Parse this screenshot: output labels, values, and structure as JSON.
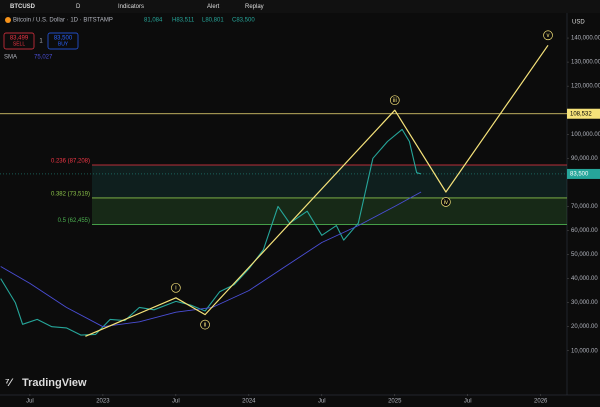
{
  "chart_data": {
    "type": "line",
    "symbol": "BTCUSD",
    "interval": "D",
    "toolbar": [
      "Indicators",
      "Alert",
      "Replay"
    ],
    "title": "Bitcoin / U.S. Dollar · 1D · BITSTAMP",
    "ohlc_text": [
      "81,084",
      "H83,511",
      "L80,801",
      "C83,500"
    ],
    "sell": {
      "price": "83,499",
      "label": "SELL"
    },
    "spread": "1",
    "buy": {
      "price": "83,500",
      "label": "BUY"
    },
    "indicator": {
      "name": "SMA",
      "value": "75,027"
    },
    "currency": "USD",
    "brand": "TradingView",
    "series": [
      {
        "name": "BTCUSD",
        "color": "#26a69a",
        "x": [
          2022.3,
          2022.4,
          2022.45,
          2022.55,
          2022.65,
          2022.75,
          2022.85,
          2022.95,
          2023.05,
          2023.15,
          2023.25,
          2023.35,
          2023.5,
          2023.6,
          2023.7,
          2023.8,
          2023.9,
          2024.0,
          2024.1,
          2024.2,
          2024.28,
          2024.4,
          2024.5,
          2024.6,
          2024.65,
          2024.75,
          2024.85,
          2024.95,
          2025.05,
          2025.1,
          2025.15,
          2025.18
        ],
        "values": [
          40000,
          30000,
          21000,
          23000,
          20000,
          19500,
          16500,
          16800,
          23000,
          22500,
          28000,
          27000,
          30500,
          29000,
          26500,
          34500,
          37500,
          44000,
          52000,
          70000,
          63000,
          68000,
          58000,
          62000,
          56000,
          63000,
          90000,
          97000,
          102000,
          97000,
          84000,
          83500
        ]
      },
      {
        "name": "SMA",
        "color": "#4a4ed6",
        "x": [
          2022.3,
          2022.5,
          2022.75,
          2023.0,
          2023.25,
          2023.5,
          2023.75,
          2024.0,
          2024.25,
          2024.5,
          2024.75,
          2025.0,
          2025.18
        ],
        "values": [
          45000,
          38000,
          28000,
          20000,
          22000,
          26000,
          28000,
          35000,
          45000,
          55000,
          62000,
          70000,
          76000
        ]
      }
    ],
    "waves": {
      "color": "#f5e27a",
      "labels": [
        null,
        "i",
        "ii",
        "iii",
        "iv",
        "v"
      ],
      "x": [
        2022.88,
        2023.5,
        2023.7,
        2025.0,
        2025.35,
        2026.05
      ],
      "values": [
        16000,
        32000,
        25000,
        110000,
        76000,
        137000
      ]
    },
    "fib": [
      {
        "label": "0.236 (87,208)",
        "value": 87208,
        "color": "#f23645"
      },
      {
        "label": "0.382 (73,519)",
        "value": 73519,
        "color": "#8bc34a"
      },
      {
        "label": "0.5 (62,455)",
        "value": 62455,
        "color": "#4caf50"
      }
    ],
    "level": {
      "value": 108532,
      "label": "108,532",
      "color": "#f5e27a"
    },
    "last_price": {
      "value": 83500,
      "label": "83,500",
      "color": "#26a69a"
    },
    "xlim": [
      2022.295,
      2026.18
    ],
    "xticks": [
      {
        "value": 2022.5,
        "label": "Jul"
      },
      {
        "value": 2023,
        "label": "2023"
      },
      {
        "value": 2023.5,
        "label": "Jul"
      },
      {
        "value": 2024,
        "label": "2024"
      },
      {
        "value": 2024.5,
        "label": "Jul"
      },
      {
        "value": 2025,
        "label": "2025"
      },
      {
        "value": 2025.5,
        "label": "Jul"
      },
      {
        "value": 2026,
        "label": "2026"
      }
    ],
    "ylim": [
      -8000,
      150000
    ],
    "yticks": [
      {
        "value": 10000,
        "label": "10,000.00"
      },
      {
        "value": 20000,
        "label": "20,000.00"
      },
      {
        "value": 30000,
        "label": "30,000.00"
      },
      {
        "value": 40000,
        "label": "40,000.00"
      },
      {
        "value": 50000,
        "label": "50,000.00"
      },
      {
        "value": 60000,
        "label": "60,000.00"
      },
      {
        "value": 70000,
        "label": "70,000.00"
      },
      {
        "value": 90000,
        "label": "90,000.00"
      },
      {
        "value": 100000,
        "label": "100,000.00"
      },
      {
        "value": 120000,
        "label": "120,000.00"
      },
      {
        "value": 130000,
        "label": "130,000.00"
      },
      {
        "value": 140000,
        "label": "140,000.00"
      }
    ]
  }
}
